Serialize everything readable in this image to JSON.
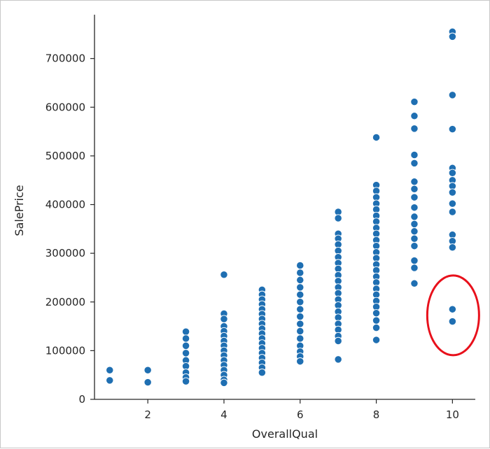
{
  "chart_data": {
    "type": "scatter",
    "title": "",
    "xlabel": "OverallQual",
    "ylabel": "SalePrice",
    "xlim": [
      0.6,
      10.6
    ],
    "ylim": [
      0,
      790000
    ],
    "x_ticks": [
      "2",
      "4",
      "6",
      "8",
      "10"
    ],
    "y_ticks": [
      "0",
      "100000",
      "200000",
      "300000",
      "400000",
      "500000",
      "600000",
      "700000"
    ],
    "grid": false,
    "marker_color": "#1f6fb2",
    "highlight": {
      "shape": "ellipse",
      "color": "#e8101b",
      "around_x": 10,
      "around_y": [
        160000,
        185000
      ]
    },
    "series": [
      {
        "points": [
          [
            1,
            60000
          ],
          [
            1,
            39000
          ],
          [
            2,
            60000
          ],
          [
            2,
            35000
          ],
          [
            3,
            139000
          ],
          [
            3,
            125000
          ],
          [
            3,
            110000
          ],
          [
            3,
            95000
          ],
          [
            3,
            80000
          ],
          [
            3,
            68000
          ],
          [
            3,
            55000
          ],
          [
            3,
            45000
          ],
          [
            3,
            37000
          ],
          [
            4,
            256000
          ],
          [
            4,
            176000
          ],
          [
            4,
            165000
          ],
          [
            4,
            150000
          ],
          [
            4,
            140000
          ],
          [
            4,
            130000
          ],
          [
            4,
            120000
          ],
          [
            4,
            110000
          ],
          [
            4,
            100000
          ],
          [
            4,
            90000
          ],
          [
            4,
            80000
          ],
          [
            4,
            70000
          ],
          [
            4,
            60000
          ],
          [
            4,
            50000
          ],
          [
            4,
            40000
          ],
          [
            4,
            34000
          ],
          [
            5,
            225000
          ],
          [
            5,
            215000
          ],
          [
            5,
            205000
          ],
          [
            5,
            195000
          ],
          [
            5,
            185000
          ],
          [
            5,
            175000
          ],
          [
            5,
            165000
          ],
          [
            5,
            155000
          ],
          [
            5,
            145000
          ],
          [
            5,
            135000
          ],
          [
            5,
            125000
          ],
          [
            5,
            115000
          ],
          [
            5,
            105000
          ],
          [
            5,
            95000
          ],
          [
            5,
            85000
          ],
          [
            5,
            75000
          ],
          [
            5,
            65000
          ],
          [
            5,
            55000
          ],
          [
            6,
            275000
          ],
          [
            6,
            260000
          ],
          [
            6,
            245000
          ],
          [
            6,
            230000
          ],
          [
            6,
            215000
          ],
          [
            6,
            200000
          ],
          [
            6,
            185000
          ],
          [
            6,
            170000
          ],
          [
            6,
            155000
          ],
          [
            6,
            140000
          ],
          [
            6,
            125000
          ],
          [
            6,
            110000
          ],
          [
            6,
            98000
          ],
          [
            6,
            88000
          ],
          [
            6,
            78000
          ],
          [
            7,
            385000
          ],
          [
            7,
            372000
          ],
          [
            7,
            340000
          ],
          [
            7,
            330000
          ],
          [
            7,
            318000
          ],
          [
            7,
            305000
          ],
          [
            7,
            292000
          ],
          [
            7,
            280000
          ],
          [
            7,
            268000
          ],
          [
            7,
            255000
          ],
          [
            7,
            243000
          ],
          [
            7,
            230000
          ],
          [
            7,
            218000
          ],
          [
            7,
            205000
          ],
          [
            7,
            193000
          ],
          [
            7,
            180000
          ],
          [
            7,
            168000
          ],
          [
            7,
            155000
          ],
          [
            7,
            143000
          ],
          [
            7,
            130000
          ],
          [
            7,
            120000
          ],
          [
            7,
            82000
          ],
          [
            8,
            538000
          ],
          [
            8,
            440000
          ],
          [
            8,
            428000
          ],
          [
            8,
            415000
          ],
          [
            8,
            402000
          ],
          [
            8,
            390000
          ],
          [
            8,
            377000
          ],
          [
            8,
            365000
          ],
          [
            8,
            352000
          ],
          [
            8,
            340000
          ],
          [
            8,
            327000
          ],
          [
            8,
            315000
          ],
          [
            8,
            302000
          ],
          [
            8,
            290000
          ],
          [
            8,
            277000
          ],
          [
            8,
            265000
          ],
          [
            8,
            252000
          ],
          [
            8,
            240000
          ],
          [
            8,
            227000
          ],
          [
            8,
            215000
          ],
          [
            8,
            202000
          ],
          [
            8,
            190000
          ],
          [
            8,
            177000
          ],
          [
            8,
            162000
          ],
          [
            8,
            147000
          ],
          [
            8,
            122000
          ],
          [
            9,
            611000
          ],
          [
            9,
            582000
          ],
          [
            9,
            556000
          ],
          [
            9,
            502000
          ],
          [
            9,
            485000
          ],
          [
            9,
            447000
          ],
          [
            9,
            432000
          ],
          [
            9,
            415000
          ],
          [
            9,
            394000
          ],
          [
            9,
            375000
          ],
          [
            9,
            360000
          ],
          [
            9,
            345000
          ],
          [
            9,
            330000
          ],
          [
            9,
            315000
          ],
          [
            9,
            285000
          ],
          [
            9,
            270000
          ],
          [
            9,
            238000
          ],
          [
            10,
            755000
          ],
          [
            10,
            745000
          ],
          [
            10,
            625000
          ],
          [
            10,
            555000
          ],
          [
            10,
            475000
          ],
          [
            10,
            465000
          ],
          [
            10,
            450000
          ],
          [
            10,
            438000
          ],
          [
            10,
            425000
          ],
          [
            10,
            402000
          ],
          [
            10,
            385000
          ],
          [
            10,
            338000
          ],
          [
            10,
            325000
          ],
          [
            10,
            312000
          ],
          [
            10,
            185000
          ],
          [
            10,
            160000
          ]
        ]
      }
    ]
  }
}
